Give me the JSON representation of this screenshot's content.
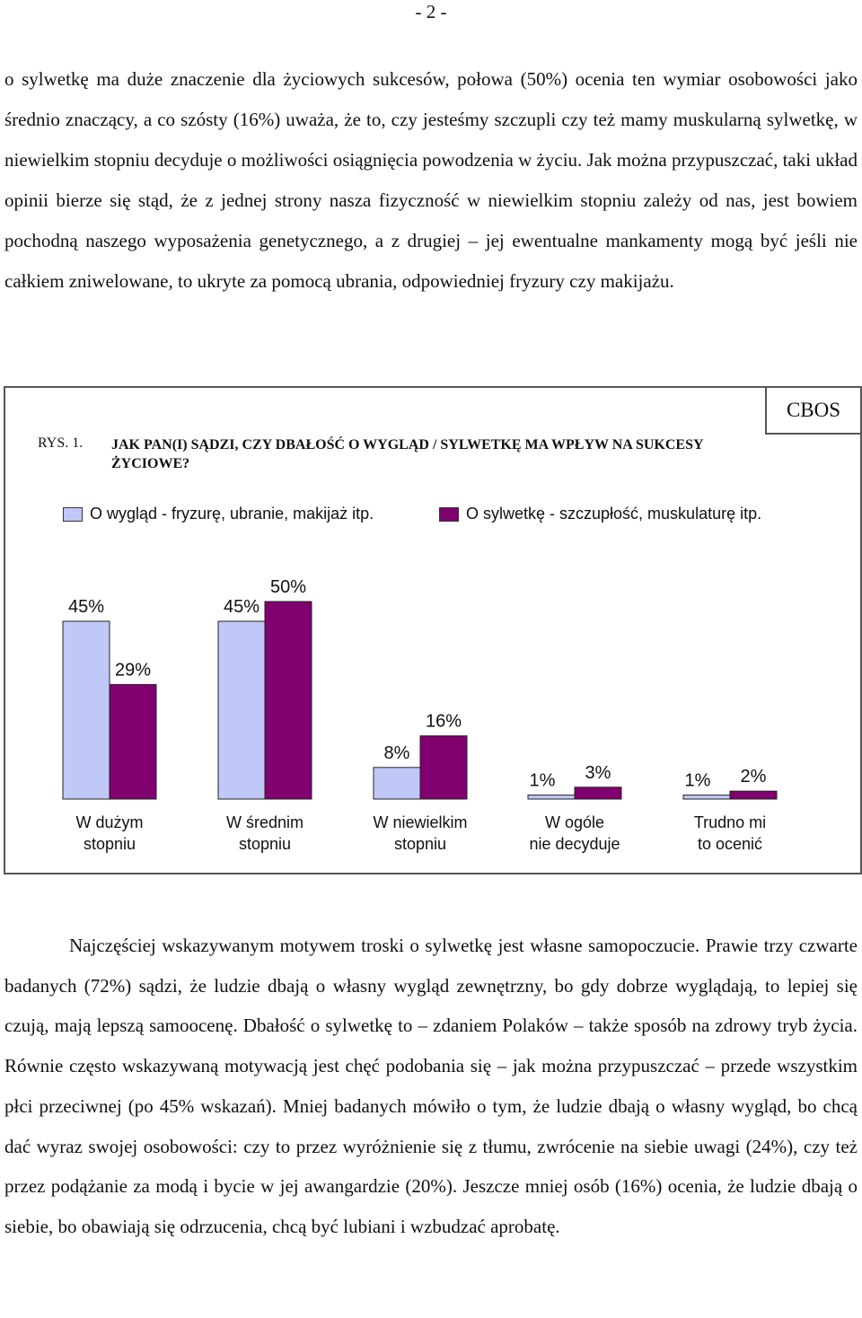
{
  "page_number": "- 2 -",
  "paragraph1": "o sylwetkę ma duże znaczenie dla życiowych sukcesów, połowa (50%) ocenia ten wymiar osobowości jako średnio znaczący, a co szósty (16%) uważa, że to, czy jesteśmy szczupli czy też mamy muskularną sylwetkę, w niewielkim stopniu decyduje o możliwości osiągnięcia powodzenia w życiu. Jak można przypuszczać, taki układ opinii bierze się stąd, że z jednej strony nasza fizyczność w niewielkim stopniu zależy od nas, jest bowiem pochodną naszego wyposażenia genetycznego, a z drugiej – jej ewentualne mankamenty mogą być jeśli nie całkiem zniwelowane, to ukryte za pomocą ubrania, odpowiedniej fryzury czy makijażu.",
  "figure": {
    "label": "RYS. 1.",
    "title": "JAK PAN(I) SĄDZI, CZY DBAŁOŚĆ O WYGLĄD / SYLWETKĘ MA WPŁYW NA SUKCESY ŻYCIOWE?",
    "source": "CBOS"
  },
  "chart_data": {
    "type": "bar",
    "title": "JAK PAN(I) SĄDZI, CZY DBAŁOŚĆ O WYGLĄD / SYLWETKĘ MA WPŁYW NA SUKCESY ŻYCIOWE?",
    "categories": [
      "W dużym stopniu",
      "W średnim stopniu",
      "W niewielkim stopniu",
      "W ogóle nie decyduje",
      "Trudno mi to ocenić"
    ],
    "category_lines": [
      [
        "W dużym",
        "stopniu"
      ],
      [
        "W średnim",
        "stopniu"
      ],
      [
        "W niewielkim",
        "stopniu"
      ],
      [
        "W ogóle",
        "nie decyduje"
      ],
      [
        "Trudno mi",
        "to ocenić"
      ]
    ],
    "series": [
      {
        "name": "O wygląd - fryzurę, ubranie, makijaż itp.",
        "color": "#c0c8f8",
        "values": [
          45,
          45,
          8,
          1,
          1
        ]
      },
      {
        "name": "O sylwetkę - szczupłość, muskulaturę itp.",
        "color": "#800070",
        "values": [
          29,
          50,
          16,
          3,
          2
        ]
      }
    ],
    "value_unit": "%",
    "ylim": [
      0,
      50
    ],
    "legend_position": "top",
    "grid": false
  },
  "paragraph2": "Najczęściej wskazywanym motywem troski o sylwetkę jest własne samopoczucie. Prawie trzy czwarte badanych (72%) sądzi, że ludzie dbają o własny wygląd zewnętrzny, bo gdy dobrze wyglądają, to lepiej się czują, mają lepszą samoocenę. Dbałość o sylwetkę to – zdaniem Polaków – także sposób na zdrowy tryb życia. Równie często wskazywaną motywacją jest chęć podobania się – jak można przypuszczać – przede wszystkim płci przeciwnej (po 45% wskazań). Mniej badanych mówiło o tym, że ludzie dbają o własny wygląd, bo chcą dać wyraz swojej osobowości: czy to przez wyróżnienie się z tłumu, zwrócenie na siebie uwagi (24%), czy też przez podążanie za modą i bycie w jej awangardzie (20%). Jeszcze mniej osób (16%) ocenia, że ludzie dbają o siebie, bo obawiają się odrzucenia, chcą być lubiani i wzbudzać aprobatę."
}
